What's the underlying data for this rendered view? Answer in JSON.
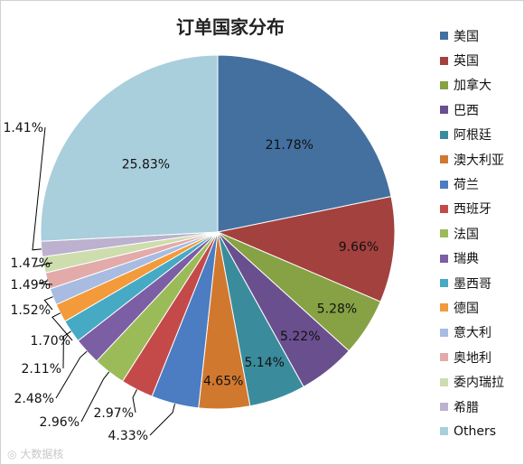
{
  "watermark": "大数据核",
  "chart_data": {
    "type": "pie",
    "title": "订单国家分布",
    "legend_position": "right",
    "slices": [
      {
        "label": "美国",
        "value": 21.78,
        "color": "#4470A0",
        "pct_label": "21.78%"
      },
      {
        "label": "英国",
        "value": 9.66,
        "color": "#A3413E",
        "pct_label": "9.66%"
      },
      {
        "label": "加拿大",
        "value": 5.28,
        "color": "#86A244",
        "pct_label": "5.28%"
      },
      {
        "label": "巴西",
        "value": 5.22,
        "color": "#6A4F8F",
        "pct_label": "5.22%"
      },
      {
        "label": "阿根廷",
        "value": 5.14,
        "color": "#3A8C9C",
        "pct_label": "5.14%"
      },
      {
        "label": "澳大利亚",
        "value": 4.65,
        "color": "#D1782F",
        "pct_label": "4.65%"
      },
      {
        "label": "荷兰",
        "value": 4.33,
        "color": "#4C7CC2",
        "pct_label": "4.33%"
      },
      {
        "label": "西班牙",
        "value": 2.97,
        "color": "#C44A49",
        "pct_label": "2.97%"
      },
      {
        "label": "法国",
        "value": 2.96,
        "color": "#9BBB59",
        "pct_label": "2.96%"
      },
      {
        "label": "瑞典",
        "value": 2.48,
        "color": "#7B5EA4",
        "pct_label": "2.48%"
      },
      {
        "label": "墨西哥",
        "value": 2.11,
        "color": "#46AAC4",
        "pct_label": "2.11%"
      },
      {
        "label": "德国",
        "value": 1.7,
        "color": "#F39A3B",
        "pct_label": "1.70%"
      },
      {
        "label": "意大利",
        "value": 1.52,
        "color": "#A7BCE0",
        "pct_label": "1.52%"
      },
      {
        "label": "奥地利",
        "value": 1.49,
        "color": "#E3AAAA",
        "pct_label": "1.49%"
      },
      {
        "label": "委内瑞拉",
        "value": 1.47,
        "color": "#CDDDAE",
        "pct_label": "1.47%"
      },
      {
        "label": "希腊",
        "value": 1.41,
        "color": "#BCB1CF",
        "pct_label": "1.41%"
      },
      {
        "label": "Others",
        "value": 25.83,
        "color": "#A9CEDC",
        "pct_label": "25.83%"
      }
    ]
  }
}
